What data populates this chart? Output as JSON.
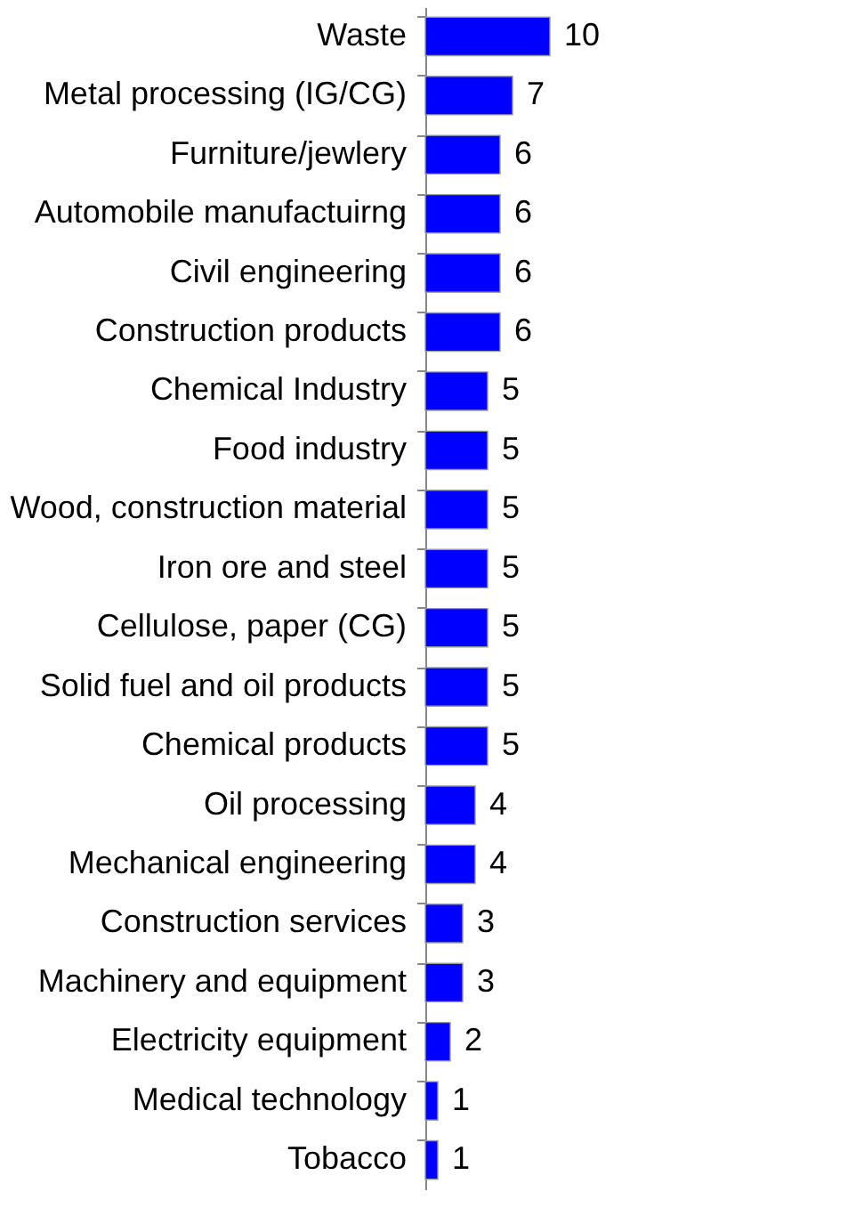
{
  "chart_data": {
    "type": "bar",
    "orientation": "horizontal",
    "data_labels": true,
    "color": "#0000ff",
    "categories": [
      "Waste",
      "Metal processing (IG/CG)",
      "Furniture/jewlery",
      "Automobile manufactuirng",
      "Civil engineering",
      "Construction products",
      "Chemical Industry",
      "Food industry",
      "Wood, construction material",
      "Iron ore and steel",
      "Cellulose, paper  (CG)",
      "Solid fuel and oil products",
      "Chemical products",
      "Oil processing",
      "Mechanical engineering",
      "Construction services",
      "Machinery and equipment",
      "Electricity equipment",
      "Medical technology",
      "Tobacco"
    ],
    "values": [
      10,
      7,
      6,
      6,
      6,
      6,
      5,
      5,
      5,
      5,
      5,
      5,
      5,
      4,
      4,
      3,
      3,
      2,
      1,
      1
    ]
  }
}
